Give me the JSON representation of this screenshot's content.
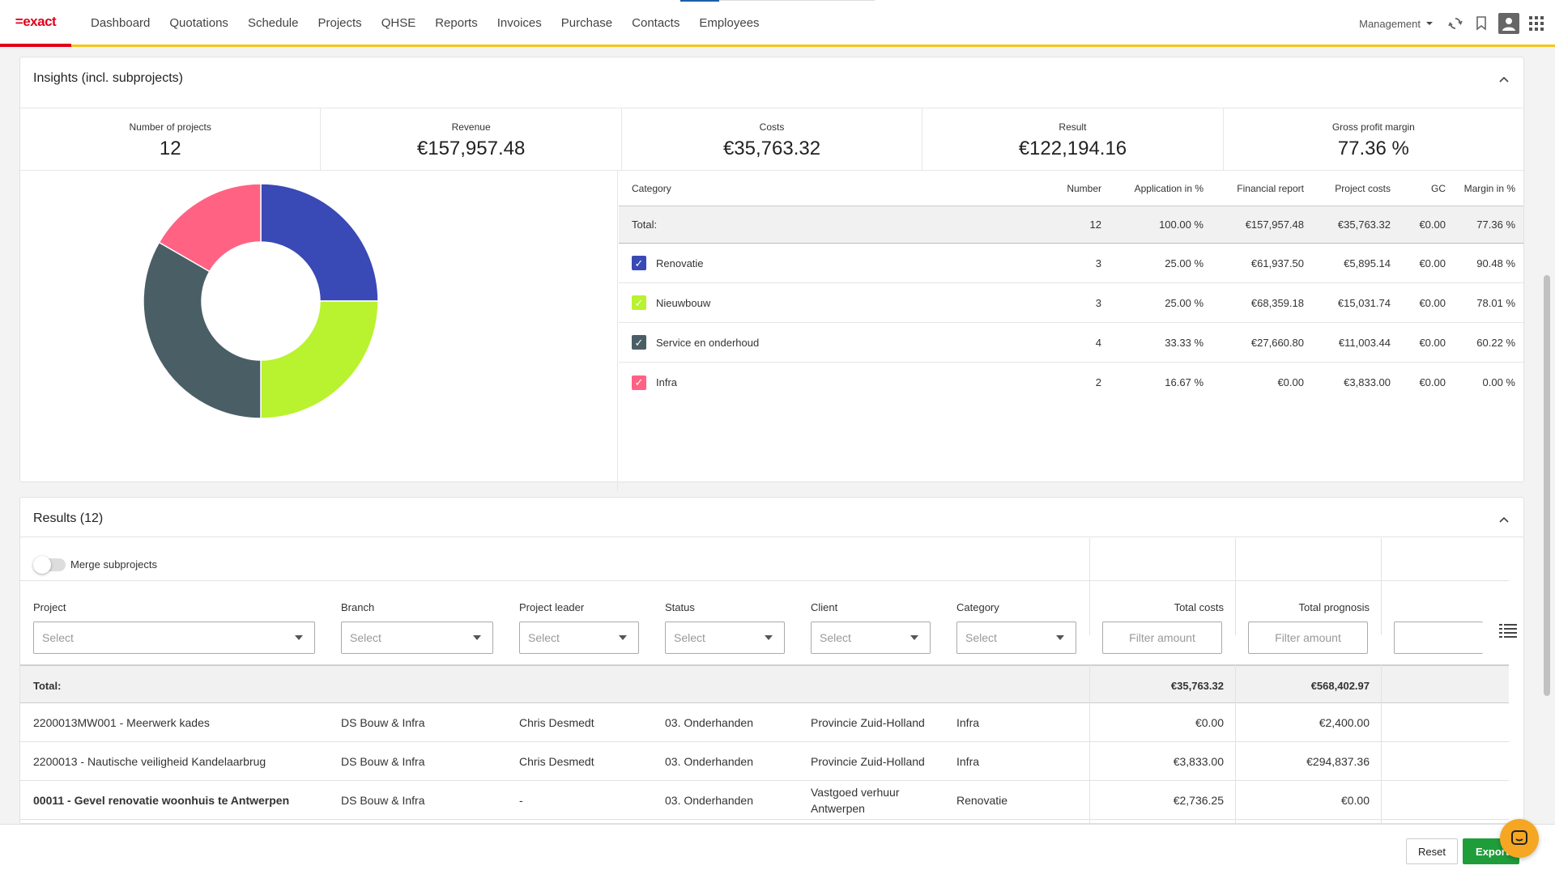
{
  "brand": {
    "logo_text": "=exact",
    "accent": "#e1001a",
    "bar_color": "#f5c518"
  },
  "nav": {
    "items": [
      "Dashboard",
      "Quotations",
      "Schedule",
      "Projects",
      "QHSE",
      "Reports",
      "Invoices",
      "Purchase",
      "Contacts",
      "Employees"
    ],
    "company": "Management",
    "icons": [
      "sync-icon",
      "bookmark-icon",
      "user-icon",
      "apps-grid-icon"
    ]
  },
  "insights": {
    "title": "Insights (incl. subprojects)",
    "kpis": [
      {
        "label": "Number of projects",
        "value": "12"
      },
      {
        "label": "Revenue",
        "value": "€157,957.48"
      },
      {
        "label": "Costs",
        "value": "€35,763.32"
      },
      {
        "label": "Result",
        "value": "€122,194.16"
      },
      {
        "label": "Gross profit margin",
        "value": "77.36 %"
      }
    ],
    "chart_data": {
      "type": "pie",
      "donut": true,
      "categories": [
        "Renovatie",
        "Nieuwbouw",
        "Service en onderhoud",
        "Infra"
      ],
      "values": [
        3,
        3,
        4,
        2
      ],
      "colors": [
        "#3949b5",
        "#b9f22e",
        "#4a5e66",
        "#ff6283"
      ]
    },
    "table": {
      "headers": [
        "Category",
        "Number",
        "Application in %",
        "Financial report",
        "Project costs",
        "GC",
        "Margin in %"
      ],
      "total": [
        "Total:",
        "12",
        "100.00 %",
        "€157,957.48",
        "€35,763.32",
        "€0.00",
        "77.36 %"
      ],
      "rows": [
        [
          "Renovatie",
          "3",
          "25.00 %",
          "€61,937.50",
          "€5,895.14",
          "€0.00",
          "90.48 %"
        ],
        [
          "Nieuwbouw",
          "3",
          "25.00 %",
          "€68,359.18",
          "€15,031.74",
          "€0.00",
          "78.01 %"
        ],
        [
          "Service en onderhoud",
          "4",
          "33.33 %",
          "€27,660.80",
          "€11,003.44",
          "€0.00",
          "60.22 %"
        ],
        [
          "Infra",
          "2",
          "16.67 %",
          "€0.00",
          "€3,833.00",
          "€0.00",
          "0.00 %"
        ]
      ]
    }
  },
  "results": {
    "title": "Results (12)",
    "merge_label": "Merge subprojects",
    "columns": [
      "Project",
      "Branch",
      "Project leader",
      "Status",
      "Client",
      "Category",
      "Total costs",
      "Total prognosis"
    ],
    "select_placeholder": "Select",
    "filter_placeholder": "Filter amount",
    "total": {
      "label": "Total:",
      "total_costs": "€35,763.32",
      "total_prognosis": "€568,402.97"
    },
    "rows": [
      {
        "project": "2200013MW001 - Meerwerk kades",
        "branch": "DS Bouw & Infra",
        "leader": "Chris Desmedt",
        "status": "03. Onderhanden",
        "client": "Provincie Zuid-Holland",
        "category": "Infra",
        "costs": "€0.00",
        "prognosis": "€2,400.00"
      },
      {
        "project": "2200013 - Nautische veiligheid Kandelaarbrug",
        "branch": "DS Bouw & Infra",
        "leader": "Chris Desmedt",
        "status": "03. Onderhanden",
        "client": "Provincie Zuid-Holland",
        "category": "Infra",
        "costs": "€3,833.00",
        "prognosis": "€294,837.36"
      },
      {
        "project": "00011 - Gevel renovatie woonhuis te Antwerpen",
        "branch": "DS Bouw & Infra",
        "leader": "-",
        "status": "03. Onderhanden",
        "client": "Vastgoed verhuur Antwerpen",
        "category": "Renovatie",
        "costs": "€2,736.25",
        "prognosis": "€0.00"
      }
    ]
  },
  "footer": {
    "reset": "Reset",
    "export": "Export"
  }
}
